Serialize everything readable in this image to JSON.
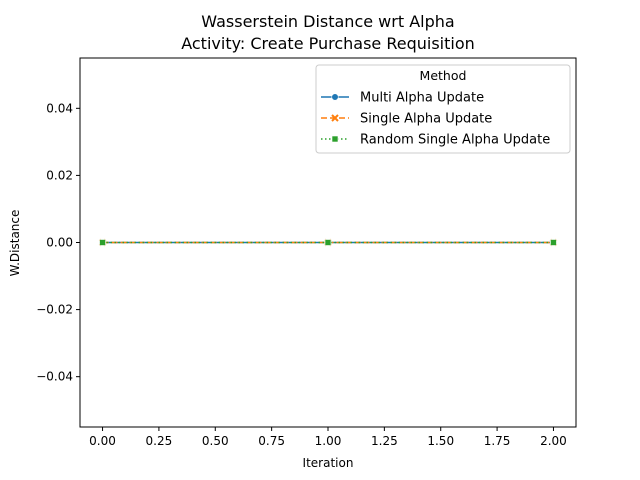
{
  "chart_data": {
    "type": "line",
    "title": "Wasserstein Distance wrt Alpha",
    "subtitle": "Activity: Create Purchase Requisition",
    "xlabel": "Iteration",
    "ylabel": "W.Distance",
    "xlim": [
      -0.1,
      2.1
    ],
    "ylim": [
      -0.055,
      0.055
    ],
    "xticks": [
      0.0,
      0.25,
      0.5,
      0.75,
      1.0,
      1.25,
      1.5,
      1.75,
      2.0
    ],
    "xtick_labels": [
      "0.00",
      "0.25",
      "0.50",
      "0.75",
      "1.00",
      "1.25",
      "1.50",
      "1.75",
      "2.00"
    ],
    "yticks": [
      -0.04,
      -0.02,
      0.0,
      0.02,
      0.04
    ],
    "ytick_labels": [
      "−0.04",
      "−0.02",
      "0.00",
      "0.02",
      "0.04"
    ],
    "grid": false,
    "legend": {
      "title": "Method",
      "placement": "top-right"
    },
    "x": [
      0,
      1,
      2
    ],
    "series": [
      {
        "name": "Multi Alpha Update",
        "values": [
          0.0,
          0.0,
          0.0
        ],
        "color": "#1f77b4",
        "marker": "circle",
        "dash": "solid"
      },
      {
        "name": "Single Alpha Update",
        "values": [
          0.0,
          0.0,
          0.0
        ],
        "color": "#ff7f0e",
        "marker": "x",
        "dash": "dashed"
      },
      {
        "name": "Random Single Alpha Update",
        "values": [
          0.0,
          0.0,
          0.0
        ],
        "color": "#2ca02c",
        "marker": "square",
        "dash": "dotted"
      }
    ]
  }
}
